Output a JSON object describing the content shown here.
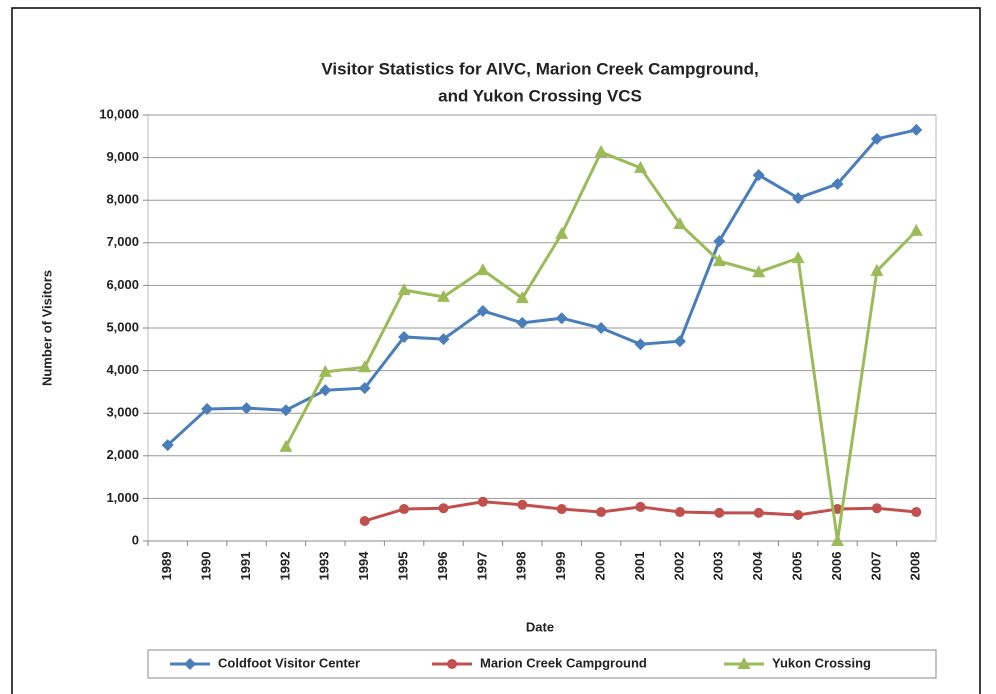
{
  "chart_data": {
    "type": "line",
    "title": [
      "Visitor Statistics for AIVC, Marion Creek Campground,",
      "and Yukon Crossing VCS"
    ],
    "x_label": "Date",
    "y_label": "Number of Visitors",
    "categories": [
      "1989",
      "1990",
      "1991",
      "1992",
      "1993",
      "1994",
      "1995",
      "1996",
      "1997",
      "1998",
      "1999",
      "2000",
      "2001",
      "2002",
      "2003",
      "2004",
      "2005",
      "2006",
      "2007",
      "2008"
    ],
    "ylim": [
      0,
      10000
    ],
    "yticks": [
      0,
      {
        "value": 1000,
        "label": "1,000"
      },
      {
        "value": 2000,
        "label": "2,000"
      },
      {
        "value": 3000,
        "label": "3,000"
      },
      {
        "value": 4000,
        "label": "4,000"
      },
      {
        "value": 5000,
        "label": "5,000"
      },
      {
        "value": 6000,
        "label": "6,000"
      },
      {
        "value": 7000,
        "label": "7,000"
      },
      {
        "value": 8000,
        "label": "8,000"
      },
      {
        "value": 9000,
        "label": "9,000"
      },
      {
        "value": 10000,
        "label": "10,000"
      }
    ],
    "grid": true,
    "legend": "bottom",
    "series": [
      {
        "name": "Coldfoot Visitor Center",
        "color": "#4a7ebb",
        "marker": "diamond",
        "values": [
          2250,
          3100,
          3120,
          3070,
          3540,
          3590,
          4790,
          4740,
          5400,
          5120,
          5230,
          5000,
          4620,
          4690,
          7040,
          8590,
          8050,
          8380,
          9440,
          9650
        ]
      },
      {
        "name": "Marion Creek Campground",
        "color": "#c0504d",
        "marker": "circle",
        "values": [
          null,
          null,
          null,
          null,
          null,
          470,
          750,
          770,
          920,
          850,
          750,
          680,
          800,
          680,
          660,
          660,
          610,
          750,
          770,
          680
        ]
      },
      {
        "name": "Yukon Crossing",
        "color": "#9bbb59",
        "marker": "triangle",
        "values": [
          null,
          null,
          null,
          2210,
          3970,
          4080,
          5890,
          5730,
          6360,
          5700,
          7210,
          9130,
          8760,
          7440,
          6570,
          6310,
          6640,
          0,
          6340,
          7280
        ]
      }
    ]
  }
}
